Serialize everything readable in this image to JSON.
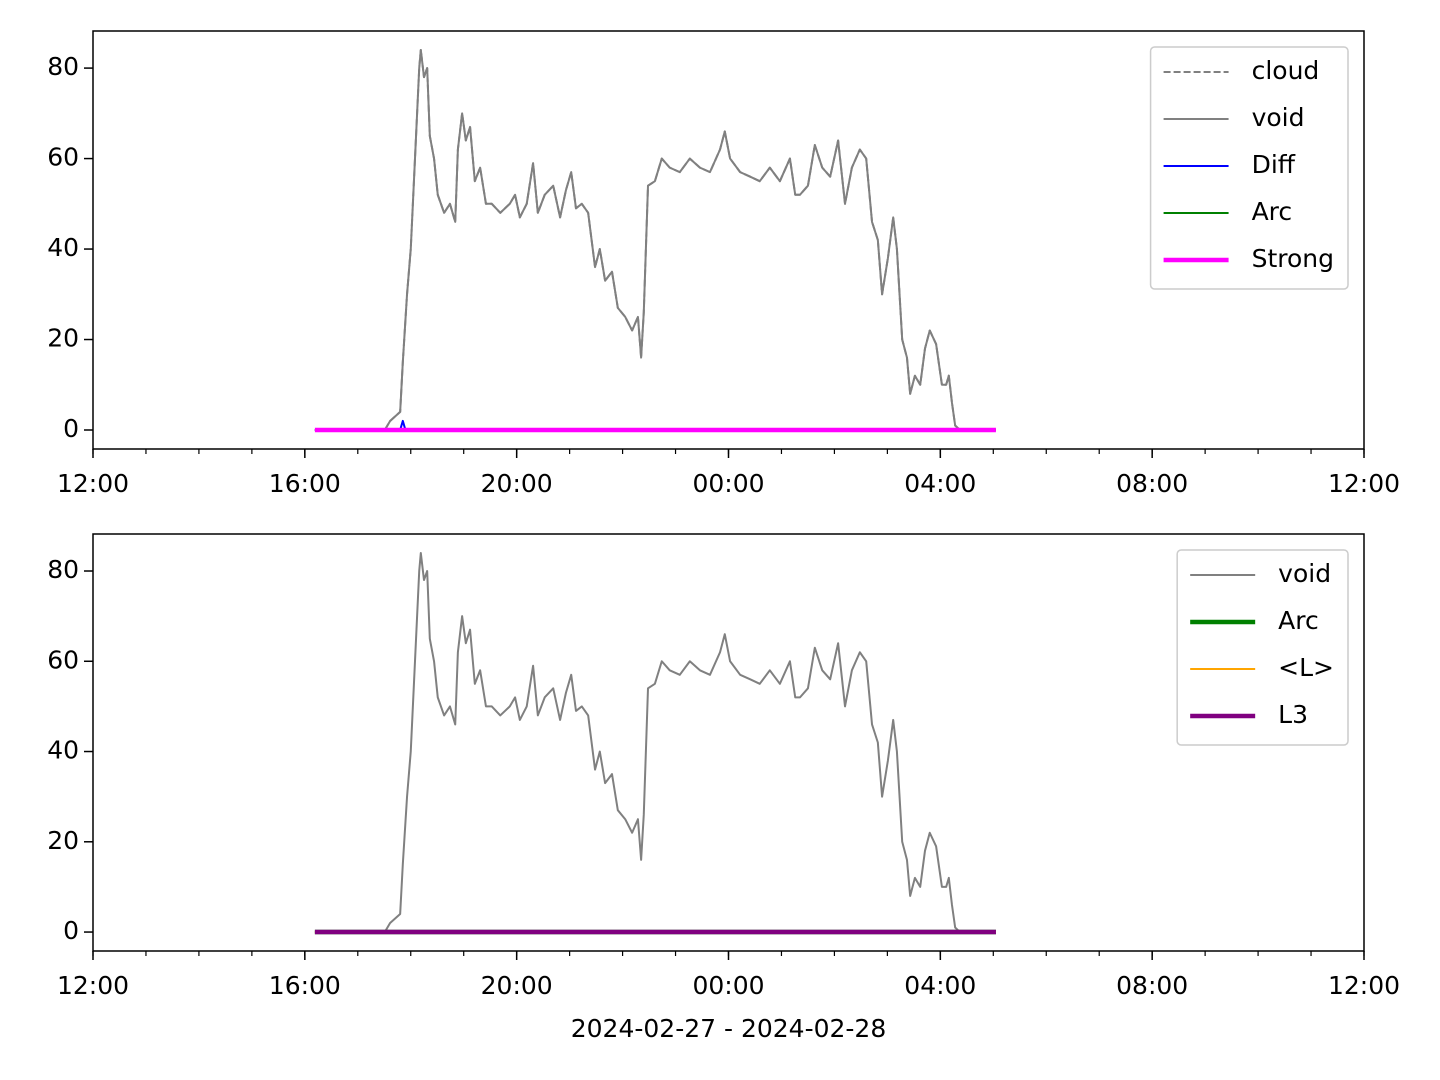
{
  "chart_data": [
    {
      "type": "line",
      "xlim": [
        12,
        36
      ],
      "ylim": [
        -4.2,
        88.2
      ],
      "xticks": [
        {
          "value": 12,
          "label": "12:00"
        },
        {
          "value": 16,
          "label": "16:00"
        },
        {
          "value": 20,
          "label": "20:00"
        },
        {
          "value": 24,
          "label": "00:00"
        },
        {
          "value": 28,
          "label": "04:00"
        },
        {
          "value": 32,
          "label": "08:00"
        },
        {
          "value": 36,
          "label": "12:00"
        }
      ],
      "yticks": [
        0,
        20,
        40,
        60,
        80
      ],
      "legend": "upper right",
      "series": [
        {
          "name": "cloud",
          "color": "#808080",
          "linestyle": "dashed",
          "linewidth": 2,
          "x": [
            16.19,
            17.51,
            17.61,
            17.8,
            17.85,
            17.93,
            18.0,
            18.08,
            18.16,
            18.19,
            18.25,
            18.31,
            18.36,
            18.44,
            18.51,
            18.63,
            18.74,
            18.84,
            18.89,
            18.97,
            19.04,
            19.12,
            19.21,
            19.31,
            19.42,
            19.53,
            19.69,
            19.87,
            19.97,
            20.06,
            20.19,
            20.31,
            20.4,
            20.53,
            20.69,
            20.82,
            20.93,
            21.03,
            21.12,
            21.23,
            21.35,
            21.48,
            21.57,
            21.67,
            21.8,
            21.91,
            22.05,
            22.18,
            22.29,
            22.35,
            22.4,
            22.48,
            22.61,
            22.74,
            22.89,
            23.08,
            23.27,
            23.46,
            23.65,
            23.84,
            23.93,
            24.03,
            24.22,
            24.41,
            24.59,
            24.78,
            24.97,
            25.16,
            25.26,
            25.35,
            25.5,
            25.63,
            25.77,
            25.92,
            26.07,
            26.2,
            26.33,
            26.48,
            26.6,
            26.71,
            26.82,
            26.9,
            27.01,
            27.11,
            27.18,
            27.28,
            27.37,
            27.43,
            27.52,
            27.62,
            27.71,
            27.8,
            27.92,
            28.03,
            28.11,
            28.16,
            28.22,
            28.28,
            28.37,
            29.05
          ],
          "values": [
            0,
            0,
            2,
            4,
            15,
            30,
            40,
            60,
            80,
            84,
            78,
            80,
            65,
            60,
            52,
            48,
            50,
            46,
            62,
            70,
            64,
            67,
            55,
            58,
            50,
            50,
            48,
            50,
            52,
            47,
            50,
            59,
            48,
            52,
            54,
            47,
            53,
            57,
            49,
            50,
            48,
            36,
            40,
            33,
            35,
            27,
            25,
            22,
            25,
            16,
            26,
            54,
            55,
            60,
            58,
            57,
            60,
            58,
            57,
            62,
            66,
            60,
            57,
            56,
            55,
            58,
            55,
            60,
            52,
            52,
            54,
            63,
            58,
            56,
            64,
            50,
            58,
            62,
            60,
            46,
            42,
            30,
            38,
            47,
            40,
            20,
            16,
            8,
            12,
            10,
            18,
            22,
            19,
            10,
            10,
            12,
            6,
            1,
            0,
            0
          ]
        },
        {
          "name": "void",
          "color": "#808080",
          "linestyle": "solid",
          "linewidth": 2,
          "x": [
            16.19,
            17.51,
            17.61,
            17.8,
            17.85,
            17.93,
            18.0,
            18.08,
            18.16,
            18.19,
            18.25,
            18.31,
            18.36,
            18.44,
            18.51,
            18.63,
            18.74,
            18.84,
            18.89,
            18.97,
            19.04,
            19.12,
            19.21,
            19.31,
            19.42,
            19.53,
            19.69,
            19.87,
            19.97,
            20.06,
            20.19,
            20.31,
            20.4,
            20.53,
            20.69,
            20.82,
            20.93,
            21.03,
            21.12,
            21.23,
            21.35,
            21.48,
            21.57,
            21.67,
            21.8,
            21.91,
            22.05,
            22.18,
            22.29,
            22.35,
            22.4,
            22.48,
            22.61,
            22.74,
            22.89,
            23.08,
            23.27,
            23.46,
            23.65,
            23.84,
            23.93,
            24.03,
            24.22,
            24.41,
            24.59,
            24.78,
            24.97,
            25.16,
            25.26,
            25.35,
            25.5,
            25.63,
            25.77,
            25.92,
            26.07,
            26.2,
            26.33,
            26.48,
            26.6,
            26.71,
            26.82,
            26.9,
            27.01,
            27.11,
            27.18,
            27.28,
            27.37,
            27.43,
            27.52,
            27.62,
            27.71,
            27.8,
            27.92,
            28.03,
            28.11,
            28.16,
            28.22,
            28.28,
            28.37,
            29.05
          ],
          "values": [
            0,
            0,
            2,
            4,
            15,
            30,
            40,
            60,
            80,
            84,
            78,
            80,
            65,
            60,
            52,
            48,
            50,
            46,
            62,
            70,
            64,
            67,
            55,
            58,
            50,
            50,
            48,
            50,
            52,
            47,
            50,
            59,
            48,
            52,
            54,
            47,
            53,
            57,
            49,
            50,
            48,
            36,
            40,
            33,
            35,
            27,
            25,
            22,
            25,
            16,
            26,
            54,
            55,
            60,
            58,
            57,
            60,
            58,
            57,
            62,
            66,
            60,
            57,
            56,
            55,
            58,
            55,
            60,
            52,
            52,
            54,
            63,
            58,
            56,
            64,
            50,
            58,
            62,
            60,
            46,
            42,
            30,
            38,
            47,
            40,
            20,
            16,
            8,
            12,
            10,
            18,
            22,
            19,
            10,
            10,
            12,
            6,
            1,
            0,
            0
          ]
        },
        {
          "name": "Diff",
          "color": "#0000ff",
          "linestyle": "solid",
          "linewidth": 2,
          "x": [
            16.19,
            17.8,
            17.85,
            17.9,
            29.05
          ],
          "values": [
            0,
            0,
            2,
            0,
            0
          ]
        },
        {
          "name": "Arc",
          "color": "#008000",
          "linestyle": "solid",
          "linewidth": 2,
          "x": [
            16.19,
            29.05
          ],
          "values": [
            0,
            0
          ]
        },
        {
          "name": "Strong",
          "color": "#ff00ff",
          "linestyle": "solid",
          "linewidth": 4.5,
          "x": [
            16.19,
            29.05
          ],
          "values": [
            0,
            0
          ]
        }
      ]
    },
    {
      "type": "line",
      "xlim": [
        12,
        36
      ],
      "ylim": [
        -4.2,
        88.2
      ],
      "xticks": [
        {
          "value": 12,
          "label": "12:00"
        },
        {
          "value": 16,
          "label": "16:00"
        },
        {
          "value": 20,
          "label": "20:00"
        },
        {
          "value": 24,
          "label": "00:00"
        },
        {
          "value": 28,
          "label": "04:00"
        },
        {
          "value": 32,
          "label": "08:00"
        },
        {
          "value": 36,
          "label": "12:00"
        }
      ],
      "yticks": [
        0,
        20,
        40,
        60,
        80
      ],
      "legend": "upper right",
      "xlabel": "2024-02-27 - 2024-02-28",
      "series": [
        {
          "name": "void",
          "color": "#808080",
          "linestyle": "solid",
          "linewidth": 2,
          "x": [
            16.19,
            17.51,
            17.61,
            17.8,
            17.85,
            17.93,
            18.0,
            18.08,
            18.16,
            18.19,
            18.25,
            18.31,
            18.36,
            18.44,
            18.51,
            18.63,
            18.74,
            18.84,
            18.89,
            18.97,
            19.04,
            19.12,
            19.21,
            19.31,
            19.42,
            19.53,
            19.69,
            19.87,
            19.97,
            20.06,
            20.19,
            20.31,
            20.4,
            20.53,
            20.69,
            20.82,
            20.93,
            21.03,
            21.12,
            21.23,
            21.35,
            21.48,
            21.57,
            21.67,
            21.8,
            21.91,
            22.05,
            22.18,
            22.29,
            22.35,
            22.4,
            22.48,
            22.61,
            22.74,
            22.89,
            23.08,
            23.27,
            23.46,
            23.65,
            23.84,
            23.93,
            24.03,
            24.22,
            24.41,
            24.59,
            24.78,
            24.97,
            25.16,
            25.26,
            25.35,
            25.5,
            25.63,
            25.77,
            25.92,
            26.07,
            26.2,
            26.33,
            26.48,
            26.6,
            26.71,
            26.82,
            26.9,
            27.01,
            27.11,
            27.18,
            27.28,
            27.37,
            27.43,
            27.52,
            27.62,
            27.71,
            27.8,
            27.92,
            28.03,
            28.11,
            28.16,
            28.22,
            28.28,
            28.37,
            29.05
          ],
          "values": [
            0,
            0,
            2,
            4,
            15,
            30,
            40,
            60,
            80,
            84,
            78,
            80,
            65,
            60,
            52,
            48,
            50,
            46,
            62,
            70,
            64,
            67,
            55,
            58,
            50,
            50,
            48,
            50,
            52,
            47,
            50,
            59,
            48,
            52,
            54,
            47,
            53,
            57,
            49,
            50,
            48,
            36,
            40,
            33,
            35,
            27,
            25,
            22,
            25,
            16,
            26,
            54,
            55,
            60,
            58,
            57,
            60,
            58,
            57,
            62,
            66,
            60,
            57,
            56,
            55,
            58,
            55,
            60,
            52,
            52,
            54,
            63,
            58,
            56,
            64,
            50,
            58,
            62,
            60,
            46,
            42,
            30,
            38,
            47,
            40,
            20,
            16,
            8,
            12,
            10,
            18,
            22,
            19,
            10,
            10,
            12,
            6,
            1,
            0,
            0
          ]
        },
        {
          "name": "Arc",
          "color": "#008000",
          "linestyle": "solid",
          "linewidth": 4.5,
          "x": [
            16.19,
            29.05
          ],
          "values": [
            0,
            0
          ]
        },
        {
          "name": "<L>",
          "color": "#ffa500",
          "linestyle": "solid",
          "linewidth": 2,
          "x": [
            16.19,
            29.05
          ],
          "values": [
            0,
            0
          ]
        },
        {
          "name": "L3",
          "color": "#800080",
          "linestyle": "solid",
          "linewidth": 4.5,
          "x": [
            16.19,
            29.05
          ],
          "values": [
            0,
            0
          ]
        }
      ]
    }
  ]
}
